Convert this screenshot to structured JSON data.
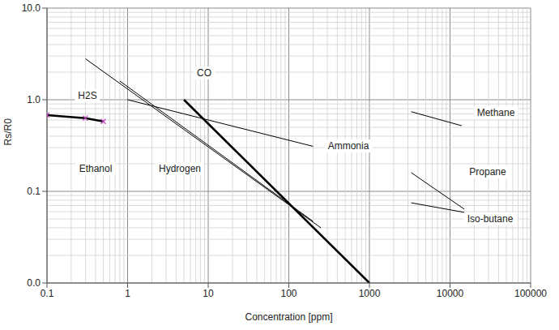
{
  "chart_data": {
    "type": "line",
    "xlabel": "Concentration [ppm]",
    "ylabel": "Rs/R0",
    "log": true,
    "grid": true,
    "xlim": [
      0.1,
      100000
    ],
    "ylim": [
      0.01,
      10
    ],
    "xticks": [
      0.1,
      1,
      10,
      100,
      1000,
      10000,
      100000
    ],
    "yticks": [
      {
        "value": 0.01,
        "label": "0.0"
      },
      0.1,
      {
        "value": 1,
        "label": "1.0"
      },
      {
        "value": 10,
        "label": "10.0"
      }
    ],
    "series": [
      {
        "name": "H2S",
        "color": "#000000",
        "line_style": "bold",
        "marker": "x",
        "x": [
          0.1,
          0.3,
          0.5
        ],
        "values": [
          0.68,
          0.63,
          0.58
        ]
      },
      {
        "name": "CO",
        "color": "#000000",
        "line_style": "bold",
        "x": [
          5,
          1000
        ],
        "values": [
          1.0,
          0.01
        ]
      },
      {
        "name": "Ethanol",
        "color": "#000000",
        "line_style": "solid",
        "x": [
          0.3,
          250
        ],
        "values": [
          2.8,
          0.04
        ]
      },
      {
        "name": "Hydrogen",
        "color": "#000000",
        "line_style": "solid",
        "x": [
          0.8,
          200
        ],
        "values": [
          1.6,
          0.047
        ]
      },
      {
        "name": "Ammonia",
        "color": "#000000",
        "line_style": "solid",
        "x": [
          1,
          200
        ],
        "values": [
          1.0,
          0.31
        ]
      },
      {
        "name": "Methane",
        "color": "#000000",
        "line_style": "solid",
        "x": [
          3300,
          14000
        ],
        "values": [
          0.74,
          0.52
        ]
      },
      {
        "name": "Propane",
        "color": "#000000",
        "line_style": "solid",
        "x": [
          3300,
          15000
        ],
        "values": [
          0.16,
          0.064
        ]
      },
      {
        "name": "Iso-butane",
        "color": "#000000",
        "line_style": "solid",
        "x": [
          3300,
          15000
        ],
        "values": [
          0.075,
          0.059
        ]
      }
    ]
  }
}
